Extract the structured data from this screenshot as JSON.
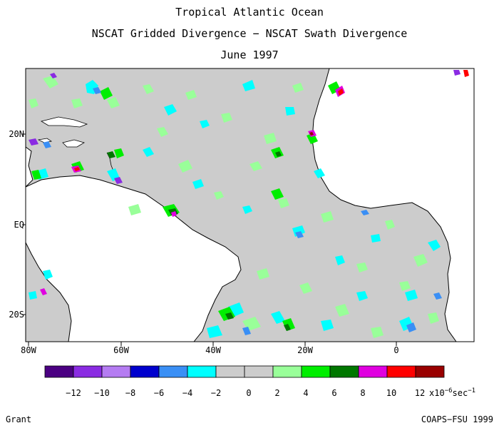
{
  "titles": {
    "line1": "Tropical Atlantic Ocean",
    "line2": "NSCAT Gridded Divergence − NSCAT Swath Divergence",
    "line3": "June 1997"
  },
  "axes": {
    "lon_ticks": [
      "80W",
      "60W",
      "40W",
      "20W",
      "0"
    ],
    "lat_ticks": [
      "20N",
      "EQ",
      "20S"
    ]
  },
  "legend": {
    "colors": [
      "#4b0082",
      "#8a2be2",
      "#b57cf2",
      "#0000cd",
      "#3a8ff5",
      "#00ffff",
      "#cccccc",
      "#cccccc",
      "#99ff99",
      "#00ee00",
      "#007700",
      "#e000e0",
      "#ff0000",
      "#990000"
    ],
    "labels": [
      "−12",
      "−10",
      "−8",
      "−6",
      "−4",
      "−2",
      "0",
      "2",
      "4",
      "6",
      "8",
      "10",
      "12"
    ],
    "unit_text": "x10",
    "unit_exp": "−6",
    "unit_suffix": "sec",
    "unit_suffix_exp": "−1"
  },
  "footer": {
    "author": "Grant",
    "credit": "COAPS−FSU 1999"
  }
}
